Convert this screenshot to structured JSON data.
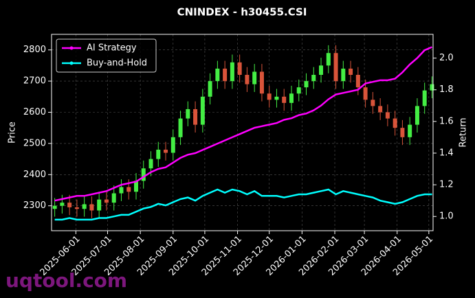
{
  "chart_data": {
    "type": "candlestick",
    "title": "CNINDEX - h30455.CSI",
    "ylabel": "Price",
    "y2label": "Return",
    "watermark": "uqtool.com",
    "x": [
      "2025-05-12",
      "2025-05-19",
      "2025-05-26",
      "2025-06-02",
      "2025-06-09",
      "2025-06-16",
      "2025-06-23",
      "2025-06-30",
      "2025-07-07",
      "2025-07-14",
      "2025-07-21",
      "2025-07-28",
      "2025-08-04",
      "2025-08-11",
      "2025-08-18",
      "2025-08-25",
      "2025-09-01",
      "2025-09-08",
      "2025-09-15",
      "2025-09-22",
      "2025-09-29",
      "2025-10-06",
      "2025-10-13",
      "2025-10-20",
      "2025-10-27",
      "2025-11-03",
      "2025-11-10",
      "2025-11-17",
      "2025-11-24",
      "2025-12-01",
      "2025-12-08",
      "2025-12-15",
      "2025-12-22",
      "2025-12-29",
      "2026-01-05",
      "2026-01-12",
      "2026-01-19",
      "2026-01-26",
      "2026-02-02",
      "2026-02-09",
      "2026-02-16",
      "2026-02-23",
      "2026-03-02",
      "2026-03-09",
      "2026-03-16",
      "2026-03-23",
      "2026-03-30",
      "2026-04-06",
      "2026-04-13",
      "2026-04-20",
      "2026-04-27",
      "2026-05-04"
    ],
    "open": [
      2290,
      2300,
      2310,
      2295,
      2290,
      2305,
      2285,
      2320,
      2310,
      2340,
      2360,
      2345,
      2380,
      2420,
      2450,
      2480,
      2470,
      2520,
      2580,
      2610,
      2560,
      2650,
      2700,
      2740,
      2700,
      2760,
      2720,
      2690,
      2730,
      2660,
      2640,
      2650,
      2630,
      2660,
      2680,
      2700,
      2720,
      2750,
      2790,
      2700,
      2740,
      2720,
      2680,
      2640,
      2620,
      2600,
      2580,
      2550,
      2520,
      2560,
      2620,
      2670
    ],
    "high": [
      2325,
      2335,
      2335,
      2320,
      2330,
      2330,
      2345,
      2345,
      2365,
      2385,
      2385,
      2405,
      2445,
      2475,
      2505,
      2505,
      2545,
      2605,
      2635,
      2635,
      2675,
      2725,
      2765,
      2765,
      2785,
      2785,
      2745,
      2755,
      2755,
      2685,
      2675,
      2675,
      2685,
      2705,
      2725,
      2745,
      2775,
      2815,
      2815,
      2765,
      2765,
      2745,
      2705,
      2665,
      2645,
      2625,
      2605,
      2575,
      2585,
      2645,
      2695,
      2715
    ],
    "low": [
      2265,
      2275,
      2270,
      2265,
      2265,
      2260,
      2260,
      2285,
      2285,
      2315,
      2320,
      2320,
      2355,
      2395,
      2425,
      2445,
      2445,
      2495,
      2555,
      2535,
      2535,
      2625,
      2675,
      2675,
      2675,
      2695,
      2665,
      2665,
      2635,
      2615,
      2615,
      2605,
      2605,
      2635,
      2655,
      2675,
      2695,
      2725,
      2675,
      2675,
      2695,
      2655,
      2615,
      2595,
      2575,
      2555,
      2525,
      2495,
      2495,
      2535,
      2595,
      2645
    ],
    "close": [
      2300,
      2310,
      2295,
      2290,
      2305,
      2285,
      2320,
      2310,
      2340,
      2360,
      2345,
      2380,
      2420,
      2450,
      2480,
      2470,
      2520,
      2580,
      2610,
      2560,
      2650,
      2700,
      2740,
      2700,
      2760,
      2720,
      2690,
      2730,
      2660,
      2640,
      2650,
      2630,
      2660,
      2680,
      2700,
      2720,
      2750,
      2790,
      2700,
      2740,
      2720,
      2680,
      2640,
      2620,
      2600,
      2580,
      2550,
      2520,
      2560,
      2620,
      2670,
      2690
    ],
    "up_color": "#44ee44",
    "down_color": "#d9543a",
    "series": [
      {
        "name": "AI Strategy",
        "color": "#ff00ff",
        "axis": "y2",
        "values": [
          1.1,
          1.11,
          1.12,
          1.13,
          1.13,
          1.14,
          1.15,
          1.16,
          1.18,
          1.2,
          1.21,
          1.22,
          1.25,
          1.28,
          1.3,
          1.31,
          1.34,
          1.37,
          1.39,
          1.4,
          1.42,
          1.44,
          1.46,
          1.48,
          1.5,
          1.52,
          1.54,
          1.56,
          1.57,
          1.58,
          1.59,
          1.61,
          1.62,
          1.64,
          1.65,
          1.67,
          1.7,
          1.74,
          1.77,
          1.78,
          1.79,
          1.8,
          1.84,
          1.85,
          1.86,
          1.86,
          1.87,
          1.91,
          1.96,
          2.0,
          2.05,
          2.07
        ]
      },
      {
        "name": "Buy-and-Hold",
        "color": "#00ffff",
        "axis": "y2",
        "values": [
          0.98,
          0.98,
          0.99,
          0.98,
          0.98,
          0.98,
          0.99,
          0.99,
          1.0,
          1.01,
          1.01,
          1.03,
          1.05,
          1.06,
          1.08,
          1.07,
          1.09,
          1.11,
          1.12,
          1.1,
          1.13,
          1.15,
          1.17,
          1.15,
          1.17,
          1.16,
          1.14,
          1.16,
          1.13,
          1.13,
          1.13,
          1.12,
          1.13,
          1.14,
          1.14,
          1.15,
          1.16,
          1.17,
          1.14,
          1.16,
          1.15,
          1.14,
          1.13,
          1.12,
          1.1,
          1.09,
          1.08,
          1.09,
          1.11,
          1.13,
          1.14,
          1.14
        ]
      }
    ],
    "xlim": [
      "2025-05-09",
      "2026-05-05"
    ],
    "xticks": [
      "2025-06-01",
      "2025-07-01",
      "2025-08-01",
      "2025-09-01",
      "2025-10-01",
      "2025-11-01",
      "2025-12-01",
      "2026-01-01",
      "2026-02-01",
      "2026-03-01",
      "2026-04-01",
      "2026-05-01"
    ],
    "ylim": [
      2220,
      2850
    ],
    "yticks": [
      2300,
      2400,
      2500,
      2600,
      2700,
      2800
    ],
    "y2lim": [
      0.91,
      2.15
    ],
    "y2ticks": [
      {
        "value": 1.0,
        "label": "1.0"
      },
      1.2,
      1.4,
      1.6,
      1.8,
      {
        "value": 2.0,
        "label": "2.0"
      }
    ],
    "grid": true,
    "legend": "upper left"
  }
}
